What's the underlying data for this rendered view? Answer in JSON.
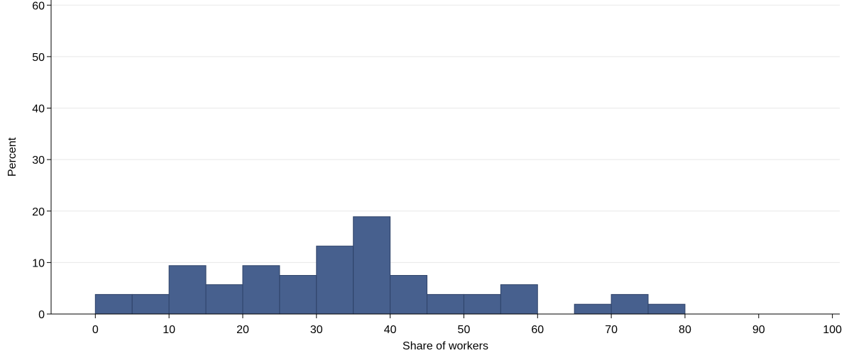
{
  "chart_data": {
    "type": "bar",
    "xlabel": "Share of workers",
    "ylabel": "Percent",
    "xlim": [
      -6,
      101
    ],
    "ylim": [
      0,
      61
    ],
    "x_ticks": [
      0,
      10,
      20,
      30,
      40,
      50,
      60,
      70,
      80,
      90,
      100
    ],
    "y_ticks": [
      0,
      10,
      20,
      30,
      40,
      50,
      60
    ],
    "grid": true,
    "bin_width": 5,
    "bins": [
      {
        "start": 0,
        "end": 5,
        "value": 3.8
      },
      {
        "start": 5,
        "end": 10,
        "value": 3.8
      },
      {
        "start": 10,
        "end": 15,
        "value": 9.4
      },
      {
        "start": 15,
        "end": 20,
        "value": 5.7
      },
      {
        "start": 20,
        "end": 25,
        "value": 9.4
      },
      {
        "start": 25,
        "end": 30,
        "value": 7.5
      },
      {
        "start": 30,
        "end": 35,
        "value": 13.2
      },
      {
        "start": 35,
        "end": 40,
        "value": 18.9
      },
      {
        "start": 40,
        "end": 45,
        "value": 7.5
      },
      {
        "start": 45,
        "end": 50,
        "value": 3.8
      },
      {
        "start": 50,
        "end": 55,
        "value": 3.8
      },
      {
        "start": 55,
        "end": 60,
        "value": 5.7
      },
      {
        "start": 65,
        "end": 70,
        "value": 1.9
      },
      {
        "start": 70,
        "end": 75,
        "value": 3.8
      },
      {
        "start": 75,
        "end": 80,
        "value": 1.9
      }
    ],
    "colors": {
      "bar_fill": "#47608e",
      "bar_stroke": "#2e4268",
      "grid": "#e8e8e8",
      "axis": "#000000"
    }
  }
}
